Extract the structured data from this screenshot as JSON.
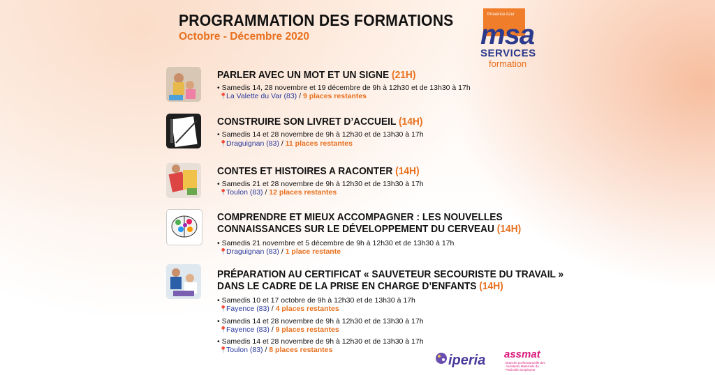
{
  "header": {
    "title": "PROGRAMMATION DES FORMATIONS",
    "subtitle": "Octobre - Décembre 2020"
  },
  "logo": {
    "tag": "Provence Azur",
    "word": "msa",
    "services": "SERVICES",
    "formation": "formation"
  },
  "pin_icon": "map-pin-icon",
  "formations": [
    {
      "title_line1": "PARLER AVEC UN MOT ET UN SIGNE",
      "duration": "(21H)",
      "sessions": [
        {
          "schedule": "• Samedis 14, 28 novembre et 19 décembre de 9h à 12h30 et de 13h30 à 17h",
          "city": "La Valette du Var (83)",
          "sep": "/",
          "places": "9 places restantes"
        }
      ]
    },
    {
      "title_line1": "CONSTRUIRE SON LIVRET D’ACCUEIL",
      "duration": "(14H)",
      "sessions": [
        {
          "schedule": "• Samedis 14 et 28 novembre de 9h à 12h30 et de 13h30 à 17h",
          "city": "Draguignan (83)",
          "sep": "/",
          "places": "11 places restantes"
        }
      ]
    },
    {
      "title_line1": "CONTES ET HISTOIRES A RACONTER",
      "duration": "(14H)",
      "sessions": [
        {
          "schedule": "• Samedis 21 et 28 novembre de 9h à 12h30 et de 13h30 à 17h",
          "city": "Toulon (83)",
          "sep": "/",
          "places": "12 places restantes"
        }
      ]
    },
    {
      "title_line1": "COMPRENDRE ET MIEUX ACCOMPAGNER : LES NOUVELLES",
      "title_line2": "CONNAISSANCES SUR LE DÉVELOPPEMENT DU CERVEAU",
      "duration": "(14H)",
      "sessions": [
        {
          "schedule": "• Samedis 21 novembre et 5 décembre de 9h à 12h30 et de 13h30 à 17h",
          "city": "Draguignan (83)",
          "sep": "/",
          "places": "1 place restante"
        }
      ]
    },
    {
      "title_line1": "PRÉPARATION AU CERTIFICAT « SAUVETEUR SECOURISTE DU TRAVAIL »",
      "title_line2": "DANS LE CADRE DE LA PRISE EN CHARGE D’ENFANTS",
      "duration": "(14H)",
      "sessions": [
        {
          "schedule": "• Samedis 10 et 17 octobre de 9h à 12h30 et de 13h30 à 17h",
          "city": "Fayence (83)",
          "sep": "/",
          "places": "4 places restantes"
        },
        {
          "schedule": "• Samedis 14 et 28 novembre de 9h à 12h30 et de 13h30 à 17h",
          "city": "Fayence (83)",
          "sep": "/",
          "places": "9 places restantes"
        },
        {
          "schedule": "• Samedis 14 et 28 novembre de 9h à 12h30 et de 13h30 à 17h",
          "city": "Toulon (83)",
          "sep": "/",
          "places": "8 places restantes"
        }
      ]
    }
  ],
  "partners": {
    "iperia": "iperia",
    "assmat": "assmat",
    "assmat_sub": "Branche professionnelle des Assistants Maternels du Particulier Employeur"
  },
  "colors": {
    "accent": "#e8701e",
    "city": "#2b3a9c",
    "msa_blue": "#2b3a8c"
  }
}
